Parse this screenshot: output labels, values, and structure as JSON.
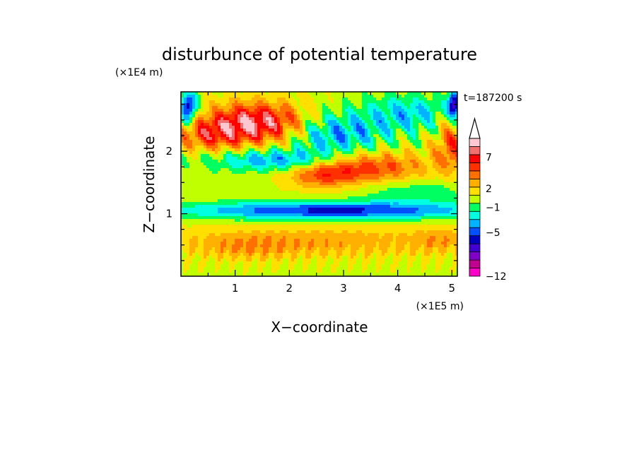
{
  "chart_data": {
    "type": "heatmap",
    "title": "disturbunce of potential temperature",
    "time_label": "t=187200 s",
    "xlabel": "X−coordinate",
    "ylabel": "Z−coordinate",
    "x_unit": "(×1E5 m)",
    "y_unit": "(×1E4 m)",
    "xlim": [
      0,
      5.1
    ],
    "ylim": [
      0,
      2.95
    ],
    "x_ticks": [
      "1",
      "2",
      "3",
      "4",
      "5"
    ],
    "x_tick_values": [
      1,
      2,
      3,
      4,
      5
    ],
    "y_ticks": [
      "1",
      "2"
    ],
    "y_tick_values": [
      1,
      2
    ],
    "colorbar": {
      "colors": [
        "#ff00c8",
        "#c0008f",
        "#8000c8",
        "#4000d0",
        "#0000c0",
        "#0050ff",
        "#00b4ff",
        "#00ffe0",
        "#00ff60",
        "#c0ff00",
        "#ffe000",
        "#ffb000",
        "#ff7000",
        "#ff3000",
        "#ff0000",
        "#f07070",
        "#ffc8d0"
      ],
      "labels": [
        "−12",
        "−5",
        "−1",
        "2",
        "7"
      ],
      "label_values": [
        -12,
        -5,
        -1,
        2,
        7
      ],
      "level_min": -12,
      "level_max": 10,
      "extend_top": true
    }
  }
}
